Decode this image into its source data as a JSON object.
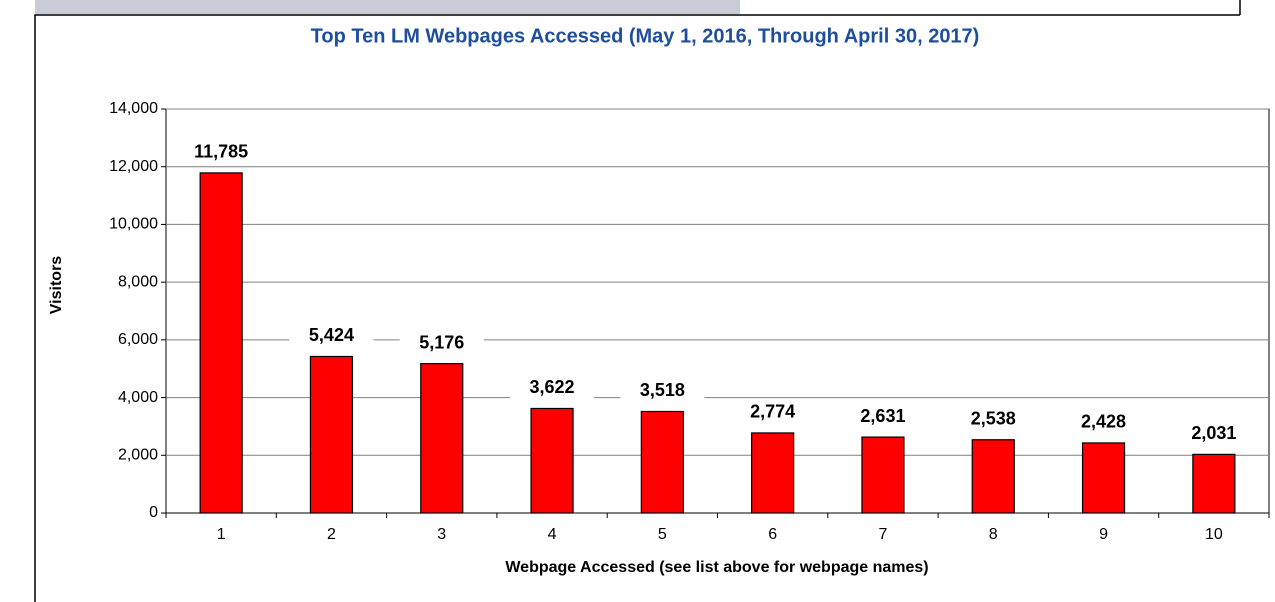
{
  "chart_data": {
    "type": "bar",
    "title": "Top Ten LM Webpages Accessed (May 1, 2016, Through April 30, 2017)",
    "x_label": "Webpage Accessed (see list above for webpage names)",
    "y_label": "Visitors",
    "categories": [
      "1",
      "2",
      "3",
      "4",
      "5",
      "6",
      "7",
      "8",
      "9",
      "10"
    ],
    "values": [
      11785,
      5424,
      5176,
      3622,
      3518,
      2774,
      2631,
      2538,
      2428,
      2031
    ],
    "value_labels": [
      "11,785",
      "5,424",
      "5,176",
      "3,622",
      "3,518",
      "2,774",
      "2,631",
      "2,538",
      "2,428",
      "2,031"
    ],
    "color": "#ff0000",
    "ylim": [
      0,
      14000
    ],
    "yticks": [
      0,
      {
        "value": 2000,
        "label": "2,000"
      },
      {
        "value": 4000,
        "label": "4,000"
      },
      {
        "value": 6000,
        "label": "6,000"
      },
      {
        "value": 8000,
        "label": "8,000"
      },
      {
        "value": 10000,
        "label": "10,000"
      },
      {
        "value": 12000,
        "label": "12,000"
      },
      {
        "value": 14000,
        "label": "14,000"
      }
    ],
    "grid": true
  }
}
